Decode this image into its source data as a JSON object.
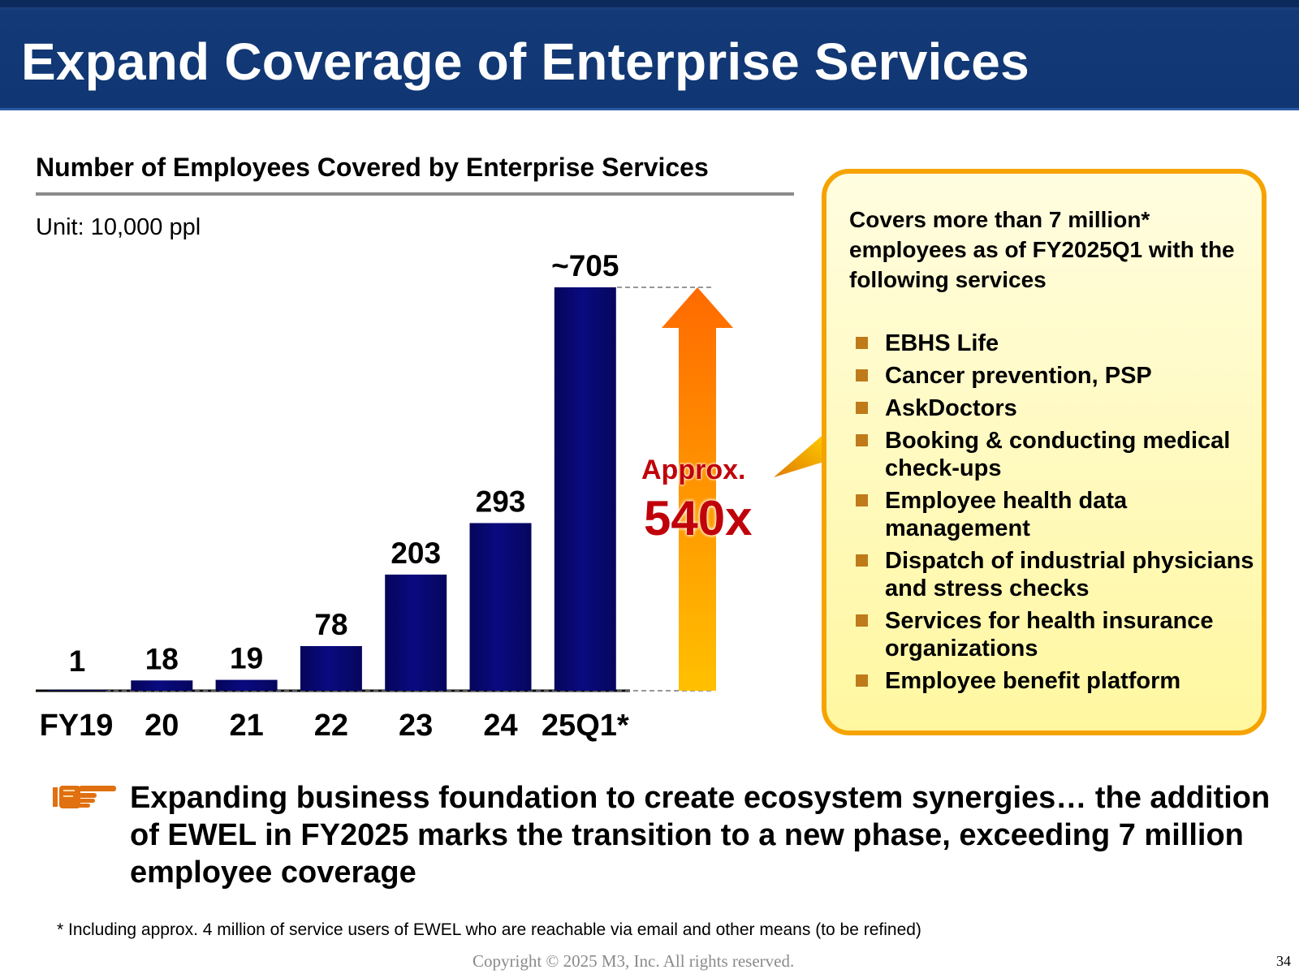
{
  "slide": {
    "title": "Expand Coverage of Enterprise Services",
    "page_number": "34",
    "copyright": "Copyright © 2025  M3, Inc.  All rights reserved."
  },
  "chart_data": {
    "type": "bar",
    "title": "Number of Employees Covered by Enterprise Services",
    "unit_label": "Unit: 10,000 ppl",
    "categories": [
      "FY19",
      "20",
      "21",
      "22",
      "23",
      "24",
      "25Q1*"
    ],
    "values": [
      1,
      18,
      19,
      78,
      203,
      293,
      705
    ],
    "value_labels": [
      "1",
      "18",
      "19",
      "78",
      "203",
      "293",
      "~705"
    ],
    "ylim": [
      0,
      705
    ],
    "grid": false,
    "bar_color": "#0a0a80",
    "growth_arrow": {
      "label_top": "Approx.",
      "label_value": "540x",
      "label_color": "#c0000a",
      "gradient_colors": [
        "#ffc000",
        "#ff6a00"
      ]
    }
  },
  "callout": {
    "heading": "Covers more than 7 million* employees as of FY2025Q1 with the following services",
    "border_color": "#f5a300",
    "items": [
      "EBHS Life",
      "Cancer prevention, PSP",
      "AskDoctors",
      "Booking & conducting medical check-ups",
      "Employee health data management",
      "Dispatch of industrial physicians and stress checks",
      "Services for health insurance organizations",
      "Employee benefit platform"
    ]
  },
  "conclusion": {
    "icon": "pointing-hand-icon",
    "text": "Expanding business foundation to create ecosystem synergies… the addition of EWEL in FY2025 marks the transition to a new phase, exceeding 7 million employee coverage"
  },
  "footnote": "* Including approx. 4 million of service users of EWEL who are reachable via email and other means (to be refined)"
}
